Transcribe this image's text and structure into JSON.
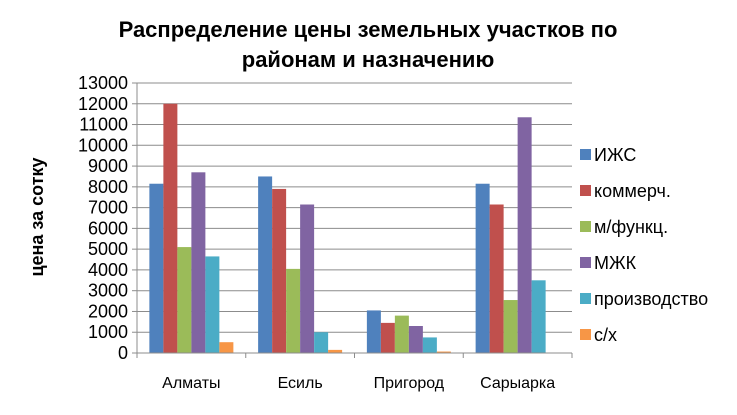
{
  "chart_data": {
    "type": "bar",
    "title": "Распределение цены земельных участков по районам и назначению",
    "title_lines": [
      "Распределение цены земельных участков по",
      "районам и назначению"
    ],
    "ylabel": "цена за сотку",
    "xlabel": "",
    "ylim": [
      0,
      13000
    ],
    "yticks": [
      "0",
      "1000",
      "2000",
      "3000",
      "4000",
      "5000",
      "6000",
      "7000",
      "8000",
      "9000",
      "10000",
      "11000",
      "12000",
      "13000"
    ],
    "grid": true,
    "legend_position": "right",
    "categories": [
      "Алматы",
      "Есиль",
      "Пригород",
      "Сарыарка"
    ],
    "series": [
      {
        "name": "ИЖС",
        "color": "#4F81BD",
        "values": [
          8150,
          8500,
          2050,
          8150
        ]
      },
      {
        "name": "коммерч.",
        "color": "#C0504D",
        "values": [
          12000,
          7900,
          1450,
          7150
        ]
      },
      {
        "name": "м/функц.",
        "color": "#9BBB59",
        "values": [
          5100,
          4050,
          1800,
          2550
        ]
      },
      {
        "name": "МЖК",
        "color": "#8064A2",
        "values": [
          8700,
          7150,
          1300,
          11350
        ]
      },
      {
        "name": "производство",
        "color": "#4BACC6",
        "values": [
          4650,
          1000,
          750,
          3500
        ]
      },
      {
        "name": "с/х",
        "color": "#F79646",
        "values": [
          520,
          150,
          70,
          0
        ]
      }
    ]
  }
}
